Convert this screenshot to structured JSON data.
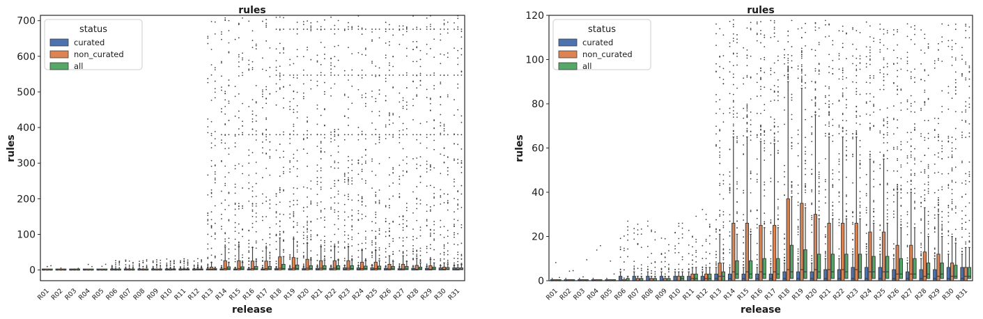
{
  "chart_data": [
    {
      "type": "boxplot",
      "title": "rules",
      "xlabel": "release",
      "ylabel": "rules",
      "ylim": [
        -30,
        715
      ],
      "yticks": [
        0,
        100,
        200,
        300,
        400,
        500,
        600,
        700
      ],
      "grid": false,
      "legend": {
        "title": "status",
        "position": "top-left"
      }
    },
    {
      "type": "boxplot",
      "title": "rules",
      "xlabel": "release",
      "ylabel": "rules",
      "ylim": [
        0,
        120
      ],
      "yticks": [
        0,
        20,
        40,
        60,
        80,
        100,
        120
      ],
      "grid": false,
      "legend": {
        "title": "status",
        "position": "top-left"
      }
    }
  ],
  "shared": {
    "categories": [
      "R01",
      "R02",
      "R03",
      "R04",
      "R05",
      "R06",
      "R07",
      "R08",
      "R09",
      "R10",
      "R11",
      "R12",
      "R13",
      "R14",
      "R15",
      "R16",
      "R17",
      "R18",
      "R19",
      "R20",
      "R21",
      "R22",
      "R23",
      "R24",
      "R25",
      "R26",
      "R27",
      "R28",
      "R29",
      "R30",
      "R31"
    ],
    "series": [
      {
        "name": "curated",
        "color": "#4c72b0",
        "q1": [
          0,
          0,
          0,
          0,
          0,
          0,
          0,
          0,
          0,
          0,
          0,
          0,
          0,
          0,
          0,
          0,
          0,
          0,
          0,
          0,
          0,
          0,
          0,
          0,
          0,
          0,
          0,
          0,
          0,
          0,
          0
        ],
        "median": [
          0,
          0,
          0,
          0,
          0,
          0,
          0,
          0,
          0,
          0,
          0,
          0,
          1,
          1,
          1,
          1,
          1,
          1,
          1,
          1,
          1,
          1,
          1,
          1,
          1,
          1,
          1,
          1,
          1,
          1,
          1
        ],
        "q3": [
          0,
          0,
          0,
          0,
          0,
          2,
          2,
          2,
          2,
          2,
          2,
          2,
          3,
          3,
          3,
          3,
          3,
          4,
          4,
          4,
          5,
          5,
          6,
          6,
          6,
          5,
          4,
          5,
          5,
          6,
          6
        ],
        "whisker": [
          0,
          0,
          0,
          0,
          0,
          4,
          4,
          4,
          4,
          4,
          4,
          4,
          6,
          6,
          6,
          6,
          6,
          8,
          8,
          8,
          10,
          10,
          12,
          12,
          12,
          10,
          8,
          10,
          10,
          12,
          12
        ]
      },
      {
        "name": "non_curated",
        "color": "#dd8452",
        "q1": [
          0,
          0,
          0,
          0,
          0,
          0,
          0,
          0,
          0,
          0,
          0,
          0,
          0,
          0,
          0,
          0,
          0,
          0,
          0,
          0,
          0,
          0,
          0,
          0,
          0,
          0,
          0,
          0,
          0,
          0,
          0
        ],
        "median": [
          0,
          0,
          0,
          0,
          0,
          0,
          0,
          0,
          0,
          0,
          1,
          1,
          2,
          4,
          4,
          4,
          4,
          5,
          5,
          5,
          5,
          5,
          5,
          4,
          4,
          3,
          3,
          2,
          2,
          2,
          2
        ],
        "q3": [
          0,
          0,
          0,
          0,
          0,
          0,
          1,
          1,
          1,
          2,
          3,
          3,
          8,
          26,
          26,
          25,
          25,
          37,
          35,
          30,
          26,
          26,
          26,
          22,
          22,
          16,
          16,
          13,
          12,
          8,
          6
        ],
        "whisker": [
          0,
          0,
          0,
          0,
          0,
          0,
          2,
          2,
          2,
          4,
          6,
          6,
          21,
          65,
          65,
          63,
          62,
          90,
          87,
          75,
          65,
          65,
          65,
          55,
          55,
          40,
          40,
          33,
          30,
          20,
          15
        ]
      },
      {
        "name": "all",
        "color": "#55a868",
        "q1": [
          0,
          0,
          0,
          0,
          0,
          0,
          0,
          0,
          0,
          0,
          0,
          0,
          0,
          1,
          1,
          1,
          1,
          1,
          1,
          1,
          1,
          1,
          1,
          1,
          1,
          1,
          1,
          1,
          1,
          1,
          1
        ],
        "median": [
          0,
          0,
          0,
          0,
          0,
          0,
          0,
          0,
          0,
          1,
          1,
          1,
          2,
          3,
          3,
          3,
          3,
          4,
          4,
          4,
          4,
          4,
          4,
          4,
          4,
          3,
          3,
          3,
          3,
          2,
          2
        ],
        "q3": [
          0,
          0,
          0,
          0,
          0,
          1,
          1,
          1,
          1,
          2,
          3,
          3,
          4,
          9,
          9,
          10,
          10,
          16,
          14,
          12,
          12,
          12,
          12,
          11,
          11,
          10,
          10,
          8,
          8,
          7,
          6
        ],
        "whisker": [
          0,
          0,
          0,
          0,
          0,
          2,
          2,
          2,
          2,
          4,
          6,
          6,
          8,
          21,
          21,
          24,
          24,
          38,
          33,
          28,
          28,
          28,
          28,
          26,
          26,
          24,
          24,
          20,
          20,
          17,
          15
        ]
      }
    ]
  }
}
